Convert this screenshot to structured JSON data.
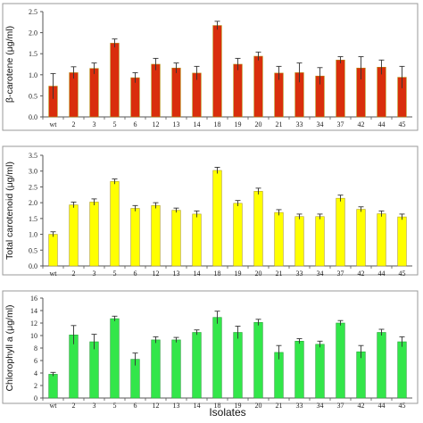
{
  "chart_data": [
    {
      "type": "bar",
      "ylabel": "β-carotene (μg/ml)",
      "xlabel": "",
      "categories": [
        "wt",
        "2",
        "3",
        "5",
        "6",
        "12",
        "13",
        "14",
        "18",
        "19",
        "20",
        "21",
        "33",
        "34",
        "37",
        "42",
        "44",
        "45"
      ],
      "values": [
        0.73,
        1.05,
        1.15,
        1.75,
        0.93,
        1.25,
        1.16,
        1.04,
        2.17,
        1.25,
        1.44,
        1.04,
        1.05,
        0.97,
        1.35,
        1.16,
        1.18,
        0.94
      ],
      "errors": [
        0.3,
        0.14,
        0.13,
        0.1,
        0.12,
        0.14,
        0.12,
        0.16,
        0.1,
        0.14,
        0.1,
        0.16,
        0.23,
        0.2,
        0.08,
        0.27,
        0.17,
        0.26
      ],
      "ylim": [
        0,
        2.5
      ],
      "yticks": [
        "0.0",
        "0.5",
        "1.0",
        "1.5",
        "2.0",
        "2.5"
      ],
      "color": "#d92e0c",
      "edge": "#b3860c",
      "grid": false,
      "legend": "none"
    },
    {
      "type": "bar",
      "ylabel": "Total carotenoid (μg/ml)",
      "xlabel": "",
      "categories": [
        "wt",
        "2",
        "3",
        "5",
        "6",
        "12",
        "13",
        "14",
        "18",
        "19",
        "20",
        "21",
        "33",
        "34",
        "37",
        "42",
        "44",
        "45"
      ],
      "values": [
        1.0,
        1.93,
        2.02,
        2.67,
        1.82,
        1.91,
        1.76,
        1.64,
        3.02,
        1.98,
        2.36,
        1.69,
        1.56,
        1.56,
        2.14,
        1.79,
        1.65,
        1.55
      ],
      "errors": [
        0.08,
        0.09,
        0.1,
        0.08,
        0.09,
        0.09,
        0.07,
        0.1,
        0.1,
        0.09,
        0.1,
        0.09,
        0.08,
        0.08,
        0.1,
        0.08,
        0.09,
        0.09
      ],
      "ylim": [
        0,
        3.5
      ],
      "yticks": [
        "0.0",
        "0.5",
        "1.0",
        "1.5",
        "2.0",
        "2.5",
        "3.0",
        "3.5"
      ],
      "color": "#ffff00",
      "edge": "#b3a020",
      "grid": false,
      "legend": "none"
    },
    {
      "type": "bar",
      "ylabel": "Chlorophyll a (μg/ml)",
      "xlabel": "Isolates",
      "categories": [
        "wt",
        "2",
        "3",
        "5",
        "6",
        "12",
        "13",
        "14",
        "18",
        "19",
        "20",
        "21",
        "33",
        "34",
        "37",
        "42",
        "44",
        "45"
      ],
      "values": [
        3.8,
        10.1,
        9.0,
        12.7,
        6.2,
        9.3,
        9.3,
        10.5,
        12.9,
        10.5,
        12.1,
        7.3,
        9.1,
        8.6,
        12.0,
        7.4,
        10.5,
        9.0
      ],
      "errors": [
        0.3,
        1.5,
        1.2,
        0.4,
        1.0,
        0.5,
        0.4,
        0.4,
        1.0,
        1.0,
        0.5,
        1.1,
        0.4,
        0.5,
        0.4,
        1.0,
        0.5,
        0.8
      ],
      "ylim": [
        0,
        16
      ],
      "yticks": [
        "0",
        "2",
        "4",
        "6",
        "8",
        "10",
        "12",
        "14",
        "16"
      ],
      "color": "#33e64a",
      "edge": "#2aa23a",
      "grid": false,
      "legend": "none"
    }
  ]
}
